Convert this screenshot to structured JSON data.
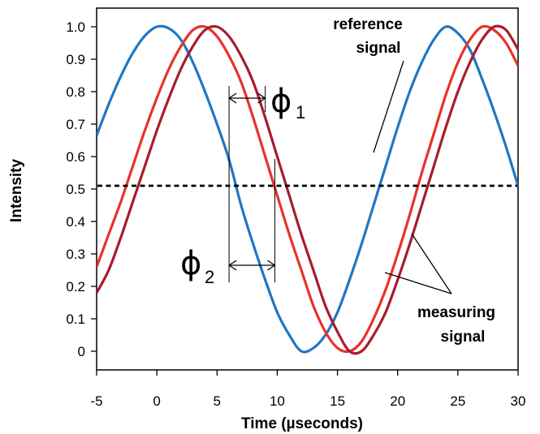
{
  "chart_data": {
    "type": "line",
    "xlabel": "Time (µseconds)",
    "ylabel": "Intensity",
    "xlim": [
      -5,
      30
    ],
    "ylim": [
      -0.03,
      1.05
    ],
    "xticks": [
      "-5",
      "0",
      "5",
      "10",
      "15",
      "20",
      "25",
      "30"
    ],
    "yticks": [
      "0",
      "0.1",
      "0.2",
      "0.3",
      "0.4",
      "0.5",
      "0.6",
      "0.7",
      "0.8",
      "0.9",
      "1.0"
    ],
    "series": [
      {
        "color": "#1f77c4",
        "x": [
          -5,
          -4,
          -3,
          -2,
          -1,
          0,
          1,
          2,
          3,
          4,
          5,
          6,
          7,
          8,
          9,
          10,
          11,
          12,
          13,
          14,
          15,
          16,
          17,
          18,
          19,
          20,
          21,
          22,
          23,
          24,
          25,
          26,
          27,
          28,
          29,
          30
        ],
        "y": [
          0.665,
          0.761,
          0.847,
          0.919,
          0.972,
          1.0,
          0.995,
          0.96,
          0.89,
          0.8,
          0.7,
          0.59,
          0.45,
          0.33,
          0.22,
          0.12,
          0.05,
          0.0,
          0.01,
          0.05,
          0.12,
          0.22,
          0.33,
          0.45,
          0.57,
          0.69,
          0.8,
          0.89,
          0.96,
          1.0,
          0.98,
          0.93,
          0.84,
          0.74,
          0.63,
          0.51
        ]
      },
      {
        "color": "#e8322b",
        "x": [
          -5,
          -4,
          -3,
          -2,
          -1,
          0,
          1,
          2,
          3,
          4,
          5,
          6,
          7,
          8,
          9,
          10,
          11,
          12,
          13,
          14,
          15,
          16,
          17,
          18,
          19,
          20,
          21,
          22,
          23,
          24,
          25,
          26,
          27,
          28,
          29,
          30
        ],
        "y": [
          0.26,
          0.36,
          0.46,
          0.57,
          0.68,
          0.78,
          0.87,
          0.94,
          0.99,
          1.0,
          0.97,
          0.91,
          0.83,
          0.72,
          0.6,
          0.48,
          0.36,
          0.25,
          0.14,
          0.06,
          0.01,
          0.0,
          0.03,
          0.1,
          0.19,
          0.3,
          0.42,
          0.55,
          0.67,
          0.79,
          0.89,
          0.96,
          1.0,
          0.99,
          0.95,
          0.88
        ]
      },
      {
        "color": "#a81c2f",
        "x": [
          -5,
          -4,
          -3,
          -2,
          -1,
          0,
          1,
          2,
          3,
          4,
          5,
          6,
          7,
          8,
          9,
          10,
          11,
          12,
          13,
          14,
          15,
          16,
          17,
          18,
          19,
          20,
          21,
          22,
          23,
          24,
          25,
          26,
          27,
          28,
          29,
          30
        ],
        "y": [
          0.18,
          0.25,
          0.35,
          0.46,
          0.57,
          0.68,
          0.78,
          0.87,
          0.94,
          0.99,
          1.0,
          0.97,
          0.91,
          0.83,
          0.72,
          0.6,
          0.48,
          0.36,
          0.25,
          0.14,
          0.06,
          0.0,
          0.0,
          0.05,
          0.12,
          0.22,
          0.33,
          0.45,
          0.57,
          0.69,
          0.8,
          0.89,
          0.96,
          1.0,
          0.99,
          0.93
        ]
      }
    ],
    "reference_line": {
      "y": 0.51,
      "style": "dashed",
      "color": "#000000"
    },
    "annotations": {
      "reference_label": [
        "reference",
        "signal"
      ],
      "measuring_label": [
        "measuring",
        "signal"
      ],
      "phi1": {
        "symbol": "ϕ",
        "subscript": "1",
        "from_x": 6,
        "to_x": 9
      },
      "phi2": {
        "symbol": "ϕ",
        "subscript": "2",
        "from_x": 6,
        "to_x": 9.8
      }
    },
    "grid": false,
    "legend": "none"
  }
}
